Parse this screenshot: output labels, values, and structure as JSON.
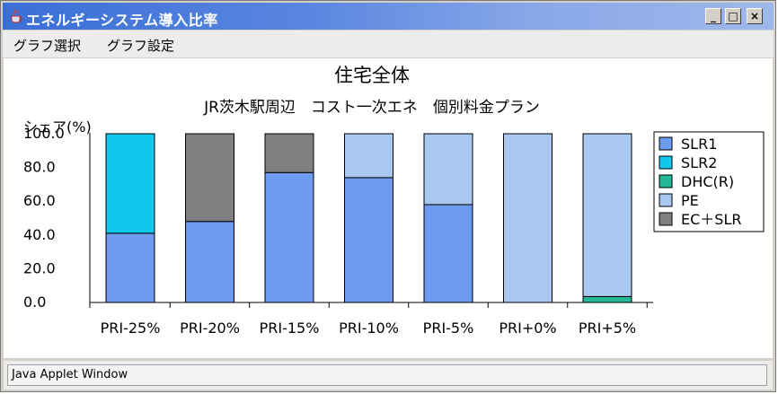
{
  "window": {
    "title": "エネルギーシステム導入比率",
    "minimize_label": "_",
    "maximize_label": "□",
    "close_label": "×"
  },
  "menu": {
    "items": [
      "グラフ選択",
      "グラフ設定"
    ]
  },
  "status": {
    "text": "Java Applet Window"
  },
  "chart_data": {
    "type": "bar",
    "stacked": true,
    "title": "住宅全体",
    "subtitle": "JR茨木駅周辺　コスト一次エネ　個別料金プラン",
    "ylabel": "シェア(%)",
    "xlabel": "",
    "ylim": [
      0,
      100
    ],
    "yticks": [
      "0.0",
      "20.0",
      "40.0",
      "60.0",
      "80.0",
      "100.0"
    ],
    "ytick_values": [
      0,
      20,
      40,
      60,
      80,
      100
    ],
    "categories": [
      "PRI-25%",
      "PRI-20%",
      "PRI-15%",
      "PRI-10%",
      "PRI-5%",
      "PRI+0%",
      "PRI+5%"
    ],
    "series": [
      {
        "name": "SLR1",
        "color": "#6e9af0",
        "values": [
          41,
          48,
          77,
          74,
          58,
          0,
          0
        ]
      },
      {
        "name": "SLR2",
        "color": "#0fc8ec",
        "values": [
          59,
          0,
          0,
          0,
          0,
          0,
          0
        ]
      },
      {
        "name": "DHC(R)",
        "color": "#22b898",
        "values": [
          0,
          0,
          0,
          0,
          0,
          0,
          3.5
        ]
      },
      {
        "name": "PE",
        "color": "#a8c8f0",
        "values": [
          0,
          0,
          0,
          26,
          42,
          100,
          96.5
        ]
      },
      {
        "name": "EC＋SLR",
        "color": "#808080",
        "values": [
          0,
          52,
          23,
          0,
          0,
          0,
          0
        ]
      }
    ],
    "legend_position": "right",
    "grid": false
  }
}
